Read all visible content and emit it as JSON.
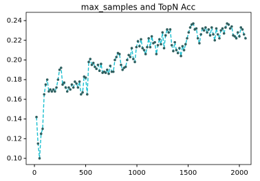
{
  "chart_data": {
    "type": "line",
    "title": "max_samples and TopN Acc",
    "x": [
      20,
      35,
      50,
      65,
      80,
      95,
      110,
      125,
      140,
      155,
      170,
      185,
      200,
      215,
      230,
      245,
      260,
      275,
      290,
      305,
      320,
      335,
      350,
      365,
      380,
      395,
      410,
      425,
      440,
      455,
      470,
      485,
      500,
      515,
      530,
      545,
      560,
      575,
      590,
      605,
      620,
      635,
      650,
      665,
      680,
      695,
      710,
      725,
      740,
      755,
      770,
      785,
      800,
      815,
      830,
      845,
      860,
      875,
      890,
      905,
      920,
      935,
      950,
      965,
      980,
      995,
      1010,
      1025,
      1040,
      1055,
      1070,
      1085,
      1100,
      1115,
      1130,
      1145,
      1160,
      1175,
      1190,
      1205,
      1220,
      1235,
      1250,
      1265,
      1280,
      1295,
      1310,
      1325,
      1340,
      1355,
      1370,
      1385,
      1400,
      1415,
      1430,
      1445,
      1460,
      1475,
      1490,
      1505,
      1520,
      1535,
      1550,
      1565,
      1580,
      1595,
      1610,
      1625,
      1640,
      1655,
      1670,
      1685,
      1700,
      1715,
      1730,
      1745,
      1760,
      1775,
      1790,
      1805,
      1820,
      1835,
      1850,
      1865,
      1880,
      1895,
      1910,
      1925,
      1940,
      1955,
      1970,
      1985,
      2000,
      2015,
      2030,
      2045,
      2060
    ],
    "values": [
      0.142,
      0.115,
      0.1,
      0.125,
      0.13,
      0.165,
      0.175,
      0.18,
      0.168,
      0.17,
      0.168,
      0.17,
      0.168,
      0.172,
      0.18,
      0.19,
      0.192,
      0.175,
      0.177,
      0.172,
      0.168,
      0.172,
      0.17,
      0.175,
      0.172,
      0.178,
      0.176,
      0.172,
      0.178,
      0.165,
      0.167,
      0.183,
      0.182,
      0.165,
      0.198,
      0.201,
      0.195,
      0.197,
      0.193,
      0.191,
      0.195,
      0.189,
      0.196,
      0.187,
      0.188,
      0.187,
      0.19,
      0.186,
      0.194,
      0.188,
      0.188,
      0.2,
      0.203,
      0.207,
      0.206,
      0.195,
      0.19,
      0.192,
      0.193,
      0.2,
      0.205,
      0.203,
      0.212,
      0.201,
      0.198,
      0.213,
      0.219,
      0.214,
      0.221,
      0.212,
      0.21,
      0.206,
      0.213,
      0.222,
      0.213,
      0.224,
      0.217,
      0.218,
      0.206,
      0.215,
      0.221,
      0.216,
      0.228,
      0.212,
      0.225,
      0.231,
      0.228,
      0.231,
      0.215,
      0.209,
      0.218,
      0.21,
      0.207,
      0.212,
      0.204,
      0.214,
      0.21,
      0.216,
      0.222,
      0.228,
      0.233,
      0.236,
      0.237,
      0.231,
      0.232,
      0.222,
      0.217,
      0.226,
      0.232,
      0.23,
      0.233,
      0.228,
      0.231,
      0.225,
      0.233,
      0.226,
      0.22,
      0.232,
      0.226,
      0.222,
      0.23,
      0.232,
      0.227,
      0.233,
      0.237,
      0.236,
      0.232,
      0.234,
      0.225,
      0.224,
      0.222,
      0.228,
      0.224,
      0.233,
      0.231,
      0.226,
      0.222
    ],
    "color": "#17becf",
    "marker_color": "#2f5f5f",
    "xlim": [
      -81,
      2114
    ],
    "ylim": [
      0.0937,
      0.2484
    ],
    "xticks": [
      0,
      500,
      1000,
      1500,
      2000
    ],
    "yticks": [
      {
        "value": 0.1,
        "label": "0.10"
      },
      0.12,
      0.14,
      0.16,
      0.18,
      {
        "value": 0.2,
        "label": "0.20"
      },
      0.22,
      0.24
    ],
    "grid": false
  }
}
